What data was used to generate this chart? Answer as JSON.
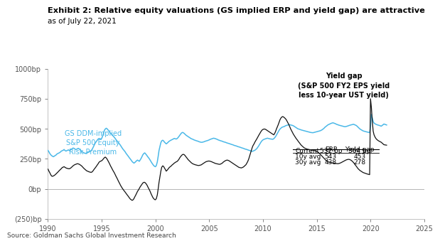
{
  "title": "Exhibit 2: Relative equity valuations (GS implied ERP and yield gap) are attractive",
  "subtitle": "as of July 22, 2021",
  "source": "Source: Goldman Sachs Global Investment Research",
  "xlim": [
    1990,
    2025
  ],
  "ylim": [
    -250,
    1000
  ],
  "yticks": [
    -250,
    0,
    250,
    500,
    750,
    1000
  ],
  "ytick_labels": [
    "(250)bp",
    "0bp",
    "250bp",
    "500bp",
    "750bp",
    "1000bp"
  ],
  "xticks": [
    1990,
    1995,
    2000,
    2005,
    2010,
    2015,
    2020,
    2025
  ],
  "erp_color": "#4ab8e8",
  "yg_color": "#111111",
  "erp_label": "GS DDM-implied\nS&P 500 Equity\nRisk Premium",
  "yg_label": "Yield gap\n(S&P 500 FY2 EPS yield\nless 10-year UST yield)",
  "table_rows": [
    "Current",
    "10y avg",
    "30y avg"
  ],
  "table_erp": [
    "532 bp",
    "543",
    "438"
  ],
  "table_yg": [
    "364 bp",
    "453",
    "278"
  ],
  "erp_data_x": [
    1990.0,
    1990.08,
    1990.17,
    1990.25,
    1990.33,
    1990.42,
    1990.5,
    1990.58,
    1990.67,
    1990.75,
    1990.83,
    1990.92,
    1991.0,
    1991.08,
    1991.17,
    1991.25,
    1991.33,
    1991.42,
    1991.5,
    1991.58,
    1991.67,
    1991.75,
    1991.83,
    1991.92,
    1992.0,
    1992.08,
    1992.17,
    1992.25,
    1992.33,
    1992.42,
    1992.5,
    1992.58,
    1992.67,
    1992.75,
    1992.83,
    1992.92,
    1993.0,
    1993.08,
    1993.17,
    1993.25,
    1993.33,
    1993.42,
    1993.5,
    1993.58,
    1993.67,
    1993.75,
    1993.83,
    1993.92,
    1994.0,
    1994.08,
    1994.17,
    1994.25,
    1994.33,
    1994.42,
    1994.5,
    1994.58,
    1994.67,
    1994.75,
    1994.83,
    1994.92,
    1995.0,
    1995.08,
    1995.17,
    1995.25,
    1995.33,
    1995.42,
    1995.5,
    1995.58,
    1995.67,
    1995.75,
    1995.83,
    1995.92,
    1996.0,
    1996.08,
    1996.17,
    1996.25,
    1996.33,
    1996.42,
    1996.5,
    1996.58,
    1996.67,
    1996.75,
    1996.83,
    1996.92,
    1997.0,
    1997.08,
    1997.17,
    1997.25,
    1997.33,
    1997.42,
    1997.5,
    1997.58,
    1997.67,
    1997.75,
    1997.83,
    1997.92,
    1998.0,
    1998.08,
    1998.17,
    1998.25,
    1998.33,
    1998.42,
    1998.5,
    1998.58,
    1998.67,
    1998.75,
    1998.83,
    1998.92,
    1999.0,
    1999.08,
    1999.17,
    1999.25,
    1999.33,
    1999.42,
    1999.5,
    1999.58,
    1999.67,
    1999.75,
    1999.83,
    1999.92,
    2000.0,
    2000.08,
    2000.17,
    2000.25,
    2000.33,
    2000.42,
    2000.5,
    2000.58,
    2000.67,
    2000.75,
    2000.83,
    2000.92,
    2001.0,
    2001.08,
    2001.17,
    2001.25,
    2001.33,
    2001.42,
    2001.5,
    2001.58,
    2001.67,
    2001.75,
    2001.83,
    2001.92,
    2002.0,
    2002.08,
    2002.17,
    2002.25,
    2002.33,
    2002.42,
    2002.5,
    2002.58,
    2002.67,
    2002.75,
    2002.83,
    2002.92,
    2003.0,
    2003.08,
    2003.17,
    2003.25,
    2003.33,
    2003.42,
    2003.5,
    2003.58,
    2003.67,
    2003.75,
    2003.83,
    2003.92,
    2004.0,
    2004.08,
    2004.17,
    2004.25,
    2004.33,
    2004.42,
    2004.5,
    2004.58,
    2004.67,
    2004.75,
    2004.83,
    2004.92,
    2005.0,
    2005.08,
    2005.17,
    2005.25,
    2005.33,
    2005.42,
    2005.5,
    2005.58,
    2005.67,
    2005.75,
    2005.83,
    2005.92,
    2006.0,
    2006.08,
    2006.17,
    2006.25,
    2006.33,
    2006.42,
    2006.5,
    2006.58,
    2006.67,
    2006.75,
    2006.83,
    2006.92,
    2007.0,
    2007.08,
    2007.17,
    2007.25,
    2007.33,
    2007.42,
    2007.5,
    2007.58,
    2007.67,
    2007.75,
    2007.83,
    2007.92,
    2008.0,
    2008.08,
    2008.17,
    2008.25,
    2008.33,
    2008.42,
    2008.5,
    2008.58,
    2008.67,
    2008.75,
    2008.83,
    2008.92,
    2009.0,
    2009.08,
    2009.17,
    2009.25,
    2009.33,
    2009.42,
    2009.5,
    2009.58,
    2009.67,
    2009.75,
    2009.83,
    2009.92,
    2010.0,
    2010.08,
    2010.17,
    2010.25,
    2010.33,
    2010.42,
    2010.5,
    2010.58,
    2010.67,
    2010.75,
    2010.83,
    2010.92,
    2011.0,
    2011.08,
    2011.17,
    2011.25,
    2011.33,
    2011.42,
    2011.5,
    2011.58,
    2011.67,
    2011.75,
    2011.83,
    2011.92,
    2012.0,
    2012.08,
    2012.17,
    2012.25,
    2012.33,
    2012.42,
    2012.5,
    2012.58,
    2012.67,
    2012.75,
    2012.83,
    2012.92,
    2013.0,
    2013.08,
    2013.17,
    2013.25,
    2013.33,
    2013.42,
    2013.5,
    2013.58,
    2013.67,
    2013.75,
    2013.83,
    2013.92,
    2014.0,
    2014.08,
    2014.17,
    2014.25,
    2014.33,
    2014.42,
    2014.5,
    2014.58,
    2014.67,
    2014.75,
    2014.83,
    2014.92,
    2015.0,
    2015.08,
    2015.17,
    2015.25,
    2015.33,
    2015.42,
    2015.5,
    2015.58,
    2015.67,
    2015.75,
    2015.83,
    2015.92,
    2016.0,
    2016.08,
    2016.17,
    2016.25,
    2016.33,
    2016.42,
    2016.5,
    2016.58,
    2016.67,
    2016.75,
    2016.83,
    2016.92,
    2017.0,
    2017.08,
    2017.17,
    2017.25,
    2017.33,
    2017.42,
    2017.5,
    2017.58,
    2017.67,
    2017.75,
    2017.83,
    2017.92,
    2018.0,
    2018.08,
    2018.17,
    2018.25,
    2018.33,
    2018.42,
    2018.5,
    2018.58,
    2018.67,
    2018.75,
    2018.83,
    2018.92,
    2019.0,
    2019.08,
    2019.17,
    2019.25,
    2019.33,
    2019.42,
    2019.5,
    2019.58,
    2019.67,
    2019.75,
    2019.83,
    2019.92,
    2020.0,
    2020.08,
    2020.17,
    2020.25,
    2020.33,
    2020.42,
    2020.5,
    2020.58,
    2020.67,
    2020.75,
    2020.83,
    2020.92,
    2021.0,
    2021.25,
    2021.5
  ],
  "erp_data_y": [
    320,
    310,
    295,
    285,
    278,
    272,
    268,
    272,
    278,
    282,
    290,
    295,
    298,
    302,
    308,
    315,
    318,
    322,
    328,
    320,
    315,
    318,
    322,
    325,
    318,
    322,
    328,
    335,
    340,
    338,
    332,
    328,
    330,
    335,
    338,
    332,
    325,
    318,
    312,
    305,
    300,
    298,
    295,
    298,
    302,
    305,
    308,
    312,
    318,
    325,
    340,
    355,
    370,
    385,
    395,
    405,
    415,
    420,
    418,
    415,
    420,
    440,
    465,
    488,
    498,
    505,
    500,
    492,
    480,
    470,
    462,
    455,
    448,
    438,
    430,
    420,
    410,
    400,
    392,
    382,
    372,
    362,
    350,
    338,
    328,
    320,
    310,
    298,
    288,
    278,
    268,
    258,
    248,
    238,
    228,
    220,
    215,
    220,
    228,
    235,
    240,
    235,
    230,
    242,
    255,
    270,
    285,
    295,
    300,
    292,
    282,
    272,
    262,
    252,
    240,
    228,
    215,
    205,
    195,
    188,
    185,
    195,
    225,
    270,
    320,
    355,
    385,
    400,
    405,
    400,
    390,
    382,
    375,
    380,
    388,
    395,
    400,
    405,
    408,
    412,
    416,
    420,
    418,
    415,
    418,
    425,
    435,
    445,
    455,
    465,
    470,
    468,
    462,
    455,
    448,
    442,
    438,
    432,
    428,
    422,
    418,
    415,
    412,
    408,
    405,
    402,
    400,
    398,
    395,
    392,
    390,
    388,
    388,
    390,
    392,
    395,
    398,
    400,
    402,
    405,
    408,
    412,
    415,
    418,
    420,
    422,
    420,
    418,
    415,
    412,
    408,
    405,
    402,
    400,
    398,
    395,
    392,
    390,
    388,
    385,
    382,
    380,
    378,
    375,
    372,
    370,
    368,
    365,
    362,
    360,
    358,
    355,
    352,
    350,
    348,
    345,
    342,
    340,
    338,
    335,
    332,
    330,
    328,
    325,
    322,
    320,
    318,
    315,
    312,
    315,
    318,
    322,
    328,
    335,
    345,
    355,
    368,
    380,
    392,
    402,
    408,
    412,
    415,
    418,
    420,
    422,
    420,
    418,
    416,
    415,
    414,
    413,
    418,
    425,
    435,
    448,
    460,
    475,
    488,
    498,
    505,
    512,
    515,
    518,
    520,
    525,
    528,
    530,
    532,
    535,
    534,
    532,
    530,
    528,
    525,
    520,
    515,
    510,
    505,
    500,
    498,
    495,
    492,
    490,
    488,
    486,
    484,
    482,
    480,
    478,
    476,
    474,
    472,
    470,
    469,
    468,
    468,
    470,
    472,
    474,
    476,
    478,
    480,
    482,
    484,
    488,
    492,
    498,
    504,
    512,
    518,
    524,
    530,
    535,
    538,
    542,
    545,
    548,
    550,
    548,
    545,
    542,
    538,
    535,
    532,
    530,
    528,
    526,
    524,
    522,
    520,
    518,
    518,
    520,
    522,
    525,
    528,
    530,
    532,
    534,
    536,
    538,
    535,
    532,
    528,
    522,
    515,
    508,
    500,
    495,
    490,
    486,
    482,
    480,
    478,
    476,
    474,
    472,
    470,
    468,
    520,
    620,
    590,
    560,
    548,
    542,
    538,
    535,
    532,
    530,
    528,
    525,
    522,
    540,
    532
  ],
  "yg_data_x": [
    1990.0,
    1990.08,
    1990.17,
    1990.25,
    1990.33,
    1990.42,
    1990.5,
    1990.58,
    1990.67,
    1990.75,
    1990.83,
    1990.92,
    1991.0,
    1991.08,
    1991.17,
    1991.25,
    1991.33,
    1991.42,
    1991.5,
    1991.58,
    1991.67,
    1991.75,
    1991.83,
    1991.92,
    1992.0,
    1992.08,
    1992.17,
    1992.25,
    1992.33,
    1992.42,
    1992.5,
    1992.58,
    1992.67,
    1992.75,
    1992.83,
    1992.92,
    1993.0,
    1993.08,
    1993.17,
    1993.25,
    1993.33,
    1993.42,
    1993.5,
    1993.58,
    1993.67,
    1993.75,
    1993.83,
    1993.92,
    1994.0,
    1994.08,
    1994.17,
    1994.25,
    1994.33,
    1994.42,
    1994.5,
    1994.58,
    1994.67,
    1994.75,
    1994.83,
    1994.92,
    1995.0,
    1995.08,
    1995.17,
    1995.25,
    1995.33,
    1995.42,
    1995.5,
    1995.58,
    1995.67,
    1995.75,
    1995.83,
    1995.92,
    1996.0,
    1996.08,
    1996.17,
    1996.25,
    1996.33,
    1996.42,
    1996.5,
    1996.58,
    1996.67,
    1996.75,
    1996.83,
    1996.92,
    1997.0,
    1997.08,
    1997.17,
    1997.25,
    1997.33,
    1997.42,
    1997.5,
    1997.58,
    1997.67,
    1997.75,
    1997.83,
    1997.92,
    1998.0,
    1998.08,
    1998.17,
    1998.25,
    1998.33,
    1998.42,
    1998.5,
    1998.58,
    1998.67,
    1998.75,
    1998.83,
    1998.92,
    1999.0,
    1999.08,
    1999.17,
    1999.25,
    1999.33,
    1999.42,
    1999.5,
    1999.58,
    1999.67,
    1999.75,
    1999.83,
    1999.92,
    2000.0,
    2000.08,
    2000.17,
    2000.25,
    2000.33,
    2000.42,
    2000.5,
    2000.58,
    2000.67,
    2000.75,
    2000.83,
    2000.92,
    2001.0,
    2001.08,
    2001.17,
    2001.25,
    2001.33,
    2001.42,
    2001.5,
    2001.58,
    2001.67,
    2001.75,
    2001.83,
    2001.92,
    2002.0,
    2002.08,
    2002.17,
    2002.25,
    2002.33,
    2002.42,
    2002.5,
    2002.58,
    2002.67,
    2002.75,
    2002.83,
    2002.92,
    2003.0,
    2003.08,
    2003.17,
    2003.25,
    2003.33,
    2003.42,
    2003.5,
    2003.58,
    2003.67,
    2003.75,
    2003.83,
    2003.92,
    2004.0,
    2004.08,
    2004.17,
    2004.25,
    2004.33,
    2004.42,
    2004.5,
    2004.58,
    2004.67,
    2004.75,
    2004.83,
    2004.92,
    2005.0,
    2005.08,
    2005.17,
    2005.25,
    2005.33,
    2005.42,
    2005.5,
    2005.58,
    2005.67,
    2005.75,
    2005.83,
    2005.92,
    2006.0,
    2006.08,
    2006.17,
    2006.25,
    2006.33,
    2006.42,
    2006.5,
    2006.58,
    2006.67,
    2006.75,
    2006.83,
    2006.92,
    2007.0,
    2007.08,
    2007.17,
    2007.25,
    2007.33,
    2007.42,
    2007.5,
    2007.58,
    2007.67,
    2007.75,
    2007.83,
    2007.92,
    2008.0,
    2008.08,
    2008.17,
    2008.25,
    2008.33,
    2008.42,
    2008.5,
    2008.58,
    2008.67,
    2008.75,
    2008.83,
    2008.92,
    2009.0,
    2009.08,
    2009.17,
    2009.25,
    2009.33,
    2009.42,
    2009.5,
    2009.58,
    2009.67,
    2009.75,
    2009.83,
    2009.92,
    2010.0,
    2010.08,
    2010.17,
    2010.25,
    2010.33,
    2010.42,
    2010.5,
    2010.58,
    2010.67,
    2010.75,
    2010.83,
    2010.92,
    2011.0,
    2011.08,
    2011.17,
    2011.25,
    2011.33,
    2011.42,
    2011.5,
    2011.58,
    2011.67,
    2011.75,
    2011.83,
    2011.92,
    2012.0,
    2012.08,
    2012.17,
    2012.25,
    2012.33,
    2012.42,
    2012.5,
    2012.58,
    2012.67,
    2012.75,
    2012.83,
    2012.92,
    2013.0,
    2013.08,
    2013.17,
    2013.25,
    2013.33,
    2013.42,
    2013.5,
    2013.58,
    2013.67,
    2013.75,
    2013.83,
    2013.92,
    2014.0,
    2014.08,
    2014.17,
    2014.25,
    2014.33,
    2014.42,
    2014.5,
    2014.58,
    2014.67,
    2014.75,
    2014.83,
    2014.92,
    2015.0,
    2015.08,
    2015.17,
    2015.25,
    2015.33,
    2015.42,
    2015.5,
    2015.58,
    2015.67,
    2015.75,
    2015.83,
    2015.92,
    2016.0,
    2016.08,
    2016.17,
    2016.25,
    2016.33,
    2016.42,
    2016.5,
    2016.58,
    2016.67,
    2016.75,
    2016.83,
    2016.92,
    2017.0,
    2017.08,
    2017.17,
    2017.25,
    2017.33,
    2017.42,
    2017.5,
    2017.58,
    2017.67,
    2017.75,
    2017.83,
    2017.92,
    2018.0,
    2018.08,
    2018.17,
    2018.25,
    2018.33,
    2018.42,
    2018.5,
    2018.58,
    2018.67,
    2018.75,
    2018.83,
    2018.92,
    2019.0,
    2019.08,
    2019.17,
    2019.25,
    2019.33,
    2019.42,
    2019.5,
    2019.58,
    2019.67,
    2019.75,
    2019.83,
    2019.92,
    2020.0,
    2020.08,
    2020.17,
    2020.25,
    2020.33,
    2020.42,
    2020.5,
    2020.58,
    2020.67,
    2020.75,
    2020.83,
    2020.92,
    2021.0,
    2021.25,
    2021.5
  ],
  "yg_data_y": [
    165,
    150,
    135,
    120,
    108,
    105,
    108,
    112,
    118,
    125,
    132,
    140,
    148,
    155,
    162,
    170,
    178,
    182,
    185,
    180,
    175,
    172,
    170,
    168,
    168,
    172,
    178,
    185,
    192,
    198,
    202,
    205,
    208,
    210,
    208,
    205,
    200,
    195,
    188,
    180,
    172,
    165,
    158,
    152,
    148,
    145,
    142,
    140,
    138,
    140,
    148,
    158,
    168,
    178,
    188,
    198,
    210,
    222,
    228,
    232,
    235,
    242,
    252,
    260,
    265,
    258,
    248,
    235,
    220,
    205,
    190,
    175,
    162,
    148,
    135,
    120,
    105,
    90,
    75,
    60,
    45,
    30,
    18,
    5,
    -5,
    -15,
    -25,
    -35,
    -45,
    -55,
    -65,
    -75,
    -85,
    -90,
    -95,
    -90,
    -80,
    -65,
    -50,
    -35,
    -20,
    -8,
    5,
    18,
    30,
    40,
    50,
    55,
    55,
    48,
    38,
    25,
    10,
    -5,
    -20,
    -38,
    -55,
    -70,
    -80,
    -88,
    -90,
    -80,
    -50,
    0,
    55,
    105,
    148,
    180,
    192,
    188,
    175,
    162,
    148,
    155,
    165,
    175,
    182,
    188,
    195,
    202,
    208,
    215,
    220,
    225,
    228,
    235,
    245,
    258,
    268,
    278,
    285,
    288,
    285,
    278,
    268,
    258,
    248,
    240,
    232,
    225,
    218,
    212,
    208,
    205,
    202,
    200,
    198,
    196,
    195,
    196,
    198,
    200,
    205,
    210,
    215,
    220,
    225,
    228,
    230,
    232,
    232,
    230,
    228,
    225,
    222,
    218,
    215,
    212,
    210,
    208,
    206,
    205,
    205,
    208,
    212,
    218,
    225,
    230,
    235,
    238,
    240,
    238,
    235,
    230,
    225,
    220,
    215,
    210,
    205,
    200,
    195,
    190,
    185,
    180,
    178,
    176,
    175,
    178,
    182,
    188,
    195,
    202,
    215,
    228,
    248,
    272,
    298,
    325,
    345,
    362,
    375,
    390,
    402,
    415,
    428,
    442,
    456,
    468,
    480,
    490,
    495,
    498,
    498,
    495,
    490,
    485,
    480,
    475,
    470,
    465,
    460,
    455,
    450,
    460,
    478,
    498,
    515,
    535,
    555,
    575,
    590,
    598,
    602,
    598,
    592,
    585,
    575,
    562,
    548,
    532,
    515,
    498,
    482,
    468,
    455,
    442,
    430,
    420,
    410,
    400,
    390,
    380,
    370,
    362,
    355,
    348,
    342,
    338,
    335,
    332,
    330,
    328,
    326,
    325,
    324,
    323,
    322,
    320,
    318,
    315,
    312,
    308,
    302,
    295,
    288,
    280,
    272,
    264,
    256,
    248,
    240,
    232,
    228,
    225,
    222,
    220,
    218,
    216,
    215,
    214,
    213,
    212,
    211,
    210,
    210,
    212,
    215,
    218,
    222,
    226,
    230,
    234,
    238,
    242,
    244,
    246,
    246,
    244,
    240,
    235,
    228,
    220,
    210,
    200,
    190,
    180,
    170,
    162,
    155,
    150,
    145,
    140,
    136,
    133,
    130,
    128,
    125,
    123,
    121,
    119,
    750,
    680,
    560,
    480,
    450,
    432,
    420,
    412,
    405,
    400,
    396,
    392,
    388,
    368,
    364
  ]
}
